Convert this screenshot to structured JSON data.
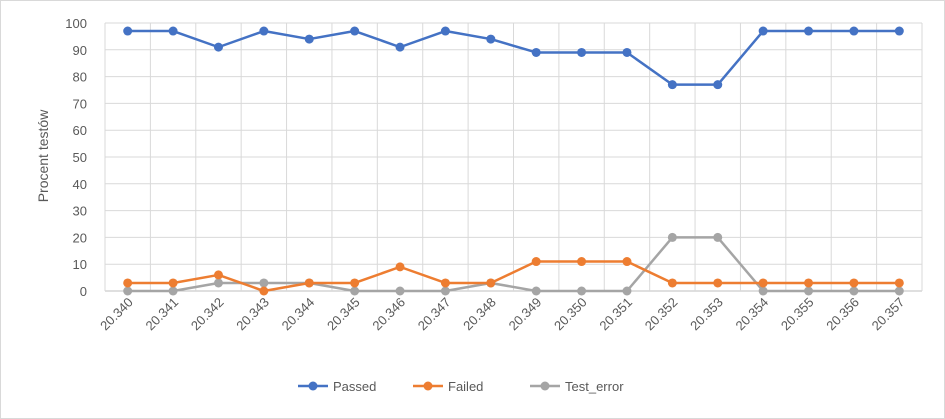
{
  "chart_data": {
    "type": "line",
    "title": "",
    "xlabel": "",
    "ylabel": "Procent testów",
    "ylim": [
      0,
      100
    ],
    "y_ticks": [
      0,
      10,
      20,
      30,
      40,
      50,
      60,
      70,
      80,
      90,
      100
    ],
    "grid": true,
    "legend_position": "bottom",
    "categories": [
      "20.340",
      "20.341",
      "20.342",
      "20.343",
      "20.344",
      "20.345",
      "20.346",
      "20.347",
      "20.348",
      "20.349",
      "20.350",
      "20.351",
      "20.352",
      "20.353",
      "20.354",
      "20.355",
      "20.356",
      "20.357"
    ],
    "series": [
      {
        "name": "Passed",
        "color": "#4472c4",
        "values": [
          97,
          97,
          91,
          97,
          94,
          97,
          91,
          97,
          94,
          89,
          89,
          89,
          77,
          77,
          97,
          97,
          97,
          97
        ]
      },
      {
        "name": "Failed",
        "color": "#ed7d31",
        "values": [
          3,
          3,
          6,
          0,
          3,
          3,
          9,
          3,
          3,
          11,
          11,
          11,
          3,
          3,
          3,
          3,
          3,
          3
        ]
      },
      {
        "name": "Test_error",
        "color": "#a5a5a5",
        "values": [
          0,
          0,
          3,
          3,
          3,
          0,
          0,
          0,
          3,
          0,
          0,
          0,
          20,
          20,
          0,
          0,
          0,
          0
        ]
      }
    ]
  }
}
